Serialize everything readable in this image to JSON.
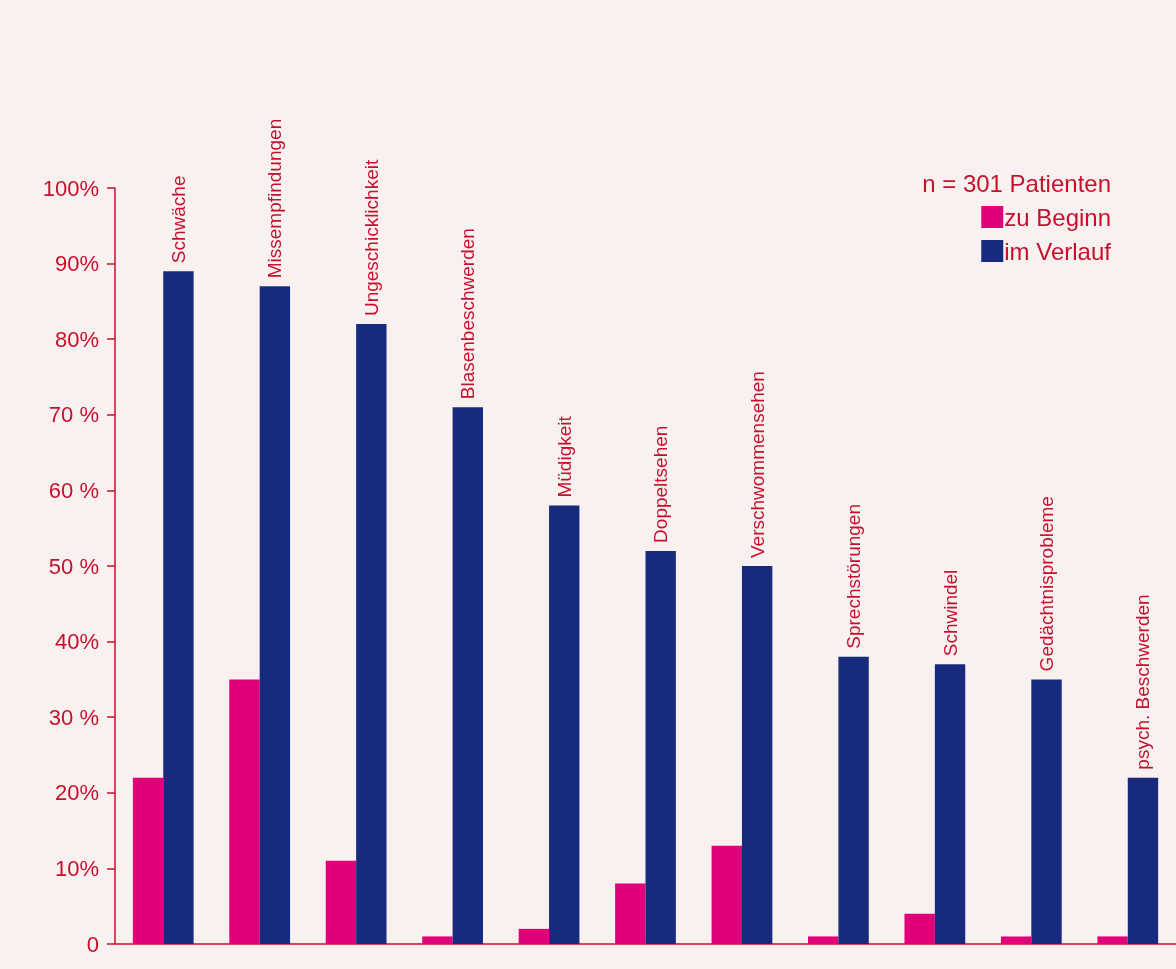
{
  "chart_data": {
    "type": "bar",
    "categories": [
      "Schwäche",
      "Missempfindungen",
      "Ungeschicklichkeit",
      "Blasenbeschwerden",
      "Müdigkeit",
      "Doppeltsehen",
      "Verschwommensehen",
      "Sprechstörungen",
      "Schwindel",
      "Gedächtnisprobleme",
      "psych. Beschwerden"
    ],
    "legend_title": "n = 301 Patienten",
    "series": [
      {
        "name": "zu Beginn",
        "color": "#e2007a",
        "values": [
          22,
          35,
          11,
          1,
          2,
          8,
          13,
          1,
          4,
          1,
          1
        ]
      },
      {
        "name": "im Verlauf",
        "color": "#172a7e",
        "values": [
          89,
          87,
          82,
          71,
          58,
          52,
          50,
          38,
          37,
          35,
          22
        ]
      }
    ],
    "ylim": [
      0,
      100
    ],
    "yticks": [
      {
        "value": 0,
        "label": "0"
      },
      {
        "value": 10,
        "label": "10%"
      },
      {
        "value": 20,
        "label": "20%"
      },
      {
        "value": 30,
        "label": "30 %"
      },
      {
        "value": 40,
        "label": "40%"
      },
      {
        "value": 50,
        "label": "50 %"
      },
      {
        "value": 60,
        "label": "60 %"
      },
      {
        "value": 70,
        "label": "70 %"
      },
      {
        "value": 80,
        "label": "80%"
      },
      {
        "value": 90,
        "label": "90%"
      },
      {
        "value": 100,
        "label": "100%"
      }
    ],
    "grid": false,
    "legend": "top right"
  }
}
